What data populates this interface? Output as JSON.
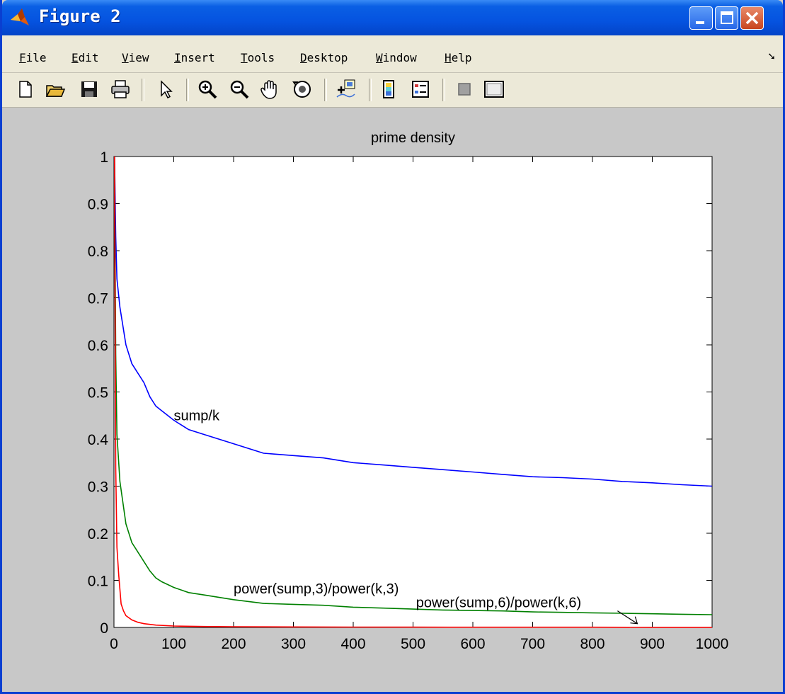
{
  "window": {
    "title": "Figure 2",
    "controls": {
      "minimize": "_",
      "maximize": "□",
      "close": "×"
    }
  },
  "menu": {
    "items": [
      "File",
      "Edit",
      "View",
      "Insert",
      "Tools",
      "Desktop",
      "Window",
      "Help"
    ]
  },
  "toolbar": {
    "icons": [
      "new-file-icon",
      "open-folder-icon",
      "save-icon",
      "print-icon",
      "pointer-icon",
      "zoom-in-icon",
      "zoom-out-icon",
      "pan-hand-icon",
      "rotate-3d-icon",
      "data-cursor-icon",
      "colorbar-icon",
      "legend-icon",
      "hide-plot-tools-icon",
      "show-plot-tools-icon"
    ]
  },
  "colors": {
    "titlebar": "#0553e0",
    "figure_bg": "#c8c8c8",
    "sump_k": "#0000ff",
    "power3": "#008000",
    "power6": "#ff0000"
  },
  "chart_data": {
    "type": "line",
    "title": "prime density",
    "xlabel": "",
    "ylabel": "",
    "xlim": [
      0,
      1000
    ],
    "ylim": [
      0,
      1
    ],
    "xticks": [
      0,
      100,
      200,
      300,
      400,
      500,
      600,
      700,
      800,
      900,
      1000
    ],
    "yticks": [
      0,
      0.1,
      0.2,
      0.3,
      0.4,
      0.5,
      0.6,
      0.7,
      0.8,
      0.9,
      1
    ],
    "grid": false,
    "series": [
      {
        "name": "sump/k",
        "color": "#0000ff",
        "x": [
          1,
          3,
          5,
          10,
          20,
          30,
          40,
          50,
          60,
          70,
          80,
          100,
          125,
          150,
          200,
          250,
          300,
          350,
          400,
          450,
          500,
          550,
          600,
          650,
          700,
          750,
          800,
          850,
          900,
          950,
          1000
        ],
        "y": [
          1.0,
          0.83,
          0.74,
          0.68,
          0.6,
          0.56,
          0.54,
          0.52,
          0.49,
          0.47,
          0.46,
          0.44,
          0.42,
          0.41,
          0.39,
          0.37,
          0.365,
          0.36,
          0.35,
          0.345,
          0.34,
          0.335,
          0.33,
          0.325,
          0.32,
          0.318,
          0.315,
          0.31,
          0.307,
          0.303,
          0.3
        ]
      },
      {
        "name": "power(sump,3)/power(k,3)",
        "color": "#008000",
        "x": [
          1,
          3,
          5,
          10,
          20,
          30,
          40,
          50,
          60,
          70,
          80,
          100,
          125,
          150,
          200,
          250,
          300,
          350,
          400,
          450,
          500,
          550,
          600,
          650,
          700,
          750,
          800,
          850,
          900,
          950,
          1000
        ],
        "y": [
          1.0,
          0.58,
          0.41,
          0.31,
          0.22,
          0.18,
          0.16,
          0.14,
          0.12,
          0.105,
          0.097,
          0.085,
          0.074,
          0.069,
          0.059,
          0.051,
          0.049,
          0.047,
          0.043,
          0.041,
          0.039,
          0.037,
          0.036,
          0.035,
          0.033,
          0.032,
          0.031,
          0.03,
          0.029,
          0.028,
          0.027
        ]
      },
      {
        "name": "power(sump,6)/power(k,6)",
        "color": "#ff0000",
        "x": [
          1,
          3,
          5,
          8,
          12,
          16,
          20,
          30,
          40,
          50,
          70,
          100,
          150,
          200,
          300,
          400,
          500,
          600,
          700,
          800,
          900,
          1000
        ],
        "y": [
          1.0,
          0.34,
          0.17,
          0.11,
          0.05,
          0.035,
          0.025,
          0.016,
          0.011,
          0.008,
          0.005,
          0.003,
          0.002,
          0.0015,
          0.001,
          0.0007,
          0.0006,
          0.0005,
          0.0005,
          0.0004,
          0.0003,
          0.0003
        ]
      }
    ],
    "annotations": [
      {
        "text": "sump/k",
        "x": 100,
        "y": 0.44
      },
      {
        "text": "power(sump,3)/power(k,3)",
        "x": 200,
        "y": 0.072
      },
      {
        "text": "power(sump,6)/power(k,6)",
        "x": 505,
        "y": 0.043,
        "arrow_to": [
          875,
          0.008
        ]
      }
    ]
  }
}
